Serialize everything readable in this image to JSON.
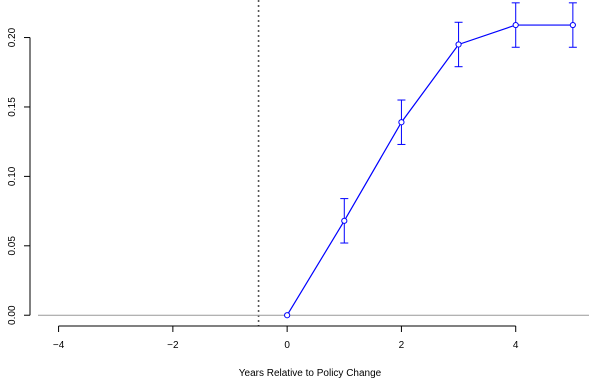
{
  "chart_data": {
    "type": "line",
    "title": "",
    "xlabel": "Years Relative to Policy Change",
    "ylabel": "",
    "xlim": [
      -4.5,
      5.3
    ],
    "ylim": [
      -0.002,
      0.222
    ],
    "x_ticks": [
      -4,
      -2,
      0,
      2,
      4
    ],
    "x_tick_labels": [
      "−4",
      "−2",
      "0",
      "2",
      "4"
    ],
    "y_ticks": [
      0.0,
      0.05,
      0.1,
      0.15,
      0.2
    ],
    "y_tick_labels": [
      "0.00",
      "0.05",
      "0.10",
      "0.15",
      "0.20"
    ],
    "series": [
      {
        "x": [
          0,
          1,
          2,
          3,
          4,
          5
        ],
        "y": [
          0.0,
          0.068,
          0.139,
          0.195,
          0.209,
          0.209
        ],
        "ci_lower": [
          0.0,
          0.052,
          0.123,
          0.179,
          0.193,
          0.193
        ],
        "ci_upper": [
          0.0,
          0.084,
          0.155,
          0.211,
          0.225,
          0.225
        ],
        "color": "#0000ff"
      }
    ],
    "reference_lines": [
      {
        "orientation": "vertical",
        "value": -0.5,
        "style": "dotted",
        "color": "#555555"
      },
      {
        "orientation": "horizontal",
        "value": 0.0,
        "style": "solid",
        "color": "#999999"
      }
    ],
    "grid": false,
    "legend": "none"
  }
}
